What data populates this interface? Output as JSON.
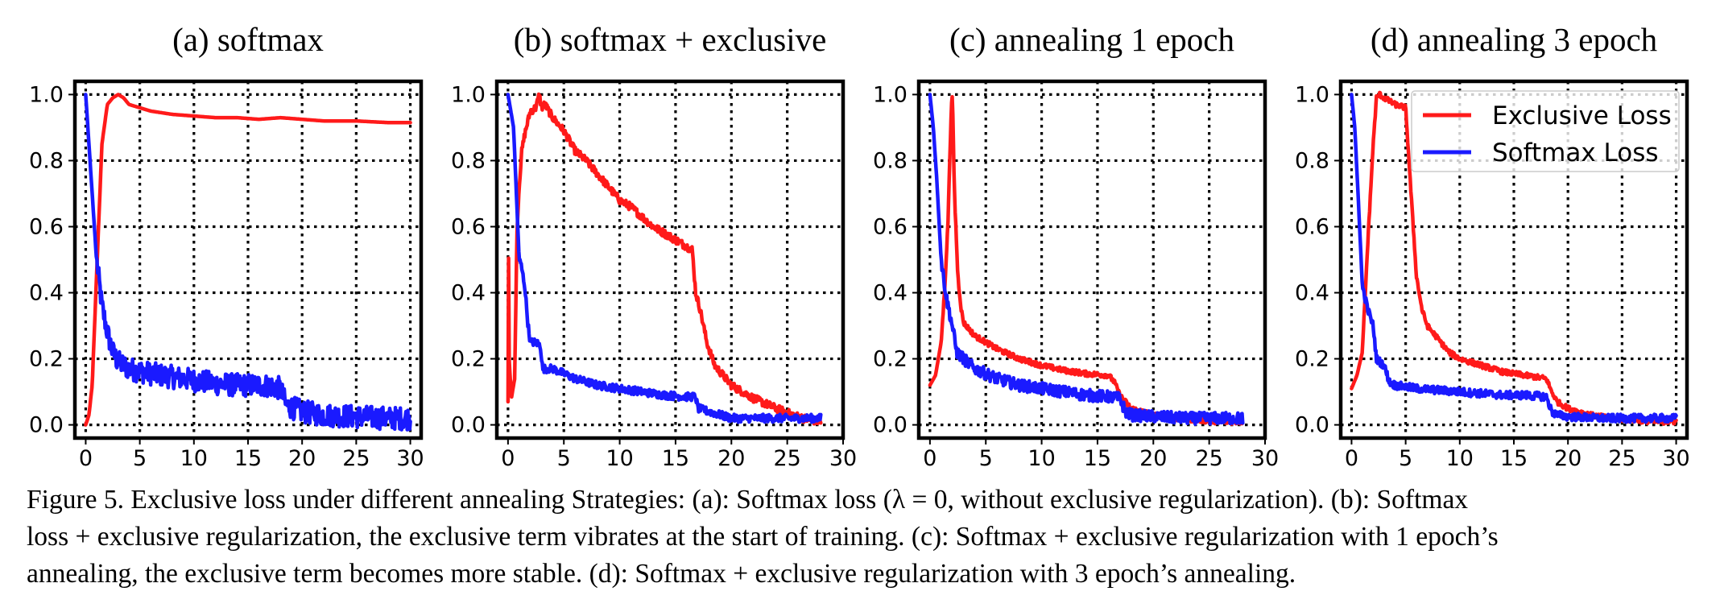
{
  "figure": {
    "caption_lines": [
      "Figure 5.   Exclusive loss under different annealing Strategies: (a): Softmax loss (λ = 0, without exclusive regularization). (b): Softmax",
      "loss + exclusive regularization, the exclusive term vibrates at the start of training. (c): Softmax + exclusive regularization with 1 epoch’s",
      "annealing, the exclusive term becomes more stable. (d): Softmax + exclusive regularization with 3 epoch’s annealing."
    ]
  },
  "colors": {
    "exclusive": "#ff1a1a",
    "softmax": "#1a1aff",
    "grid": "#000000",
    "background": "#ffffff"
  },
  "chart_data": [
    {
      "type": "line",
      "title": "(a) softmax",
      "xlim": [
        -1,
        31
      ],
      "ylim": [
        -0.04,
        1.04
      ],
      "xticks": [
        0,
        5,
        10,
        15,
        20,
        25,
        30
      ],
      "yticks": [
        0.0,
        0.2,
        0.4,
        0.6,
        0.8,
        1.0
      ],
      "grid": true,
      "series": [
        {
          "name": "Exclusive Loss",
          "color": "#ff1a1a",
          "x": [
            0,
            0.3,
            0.6,
            1.0,
            1.5,
            2.0,
            2.5,
            3.0,
            3.5,
            4.0,
            5.0,
            6.0,
            8.0,
            10.0,
            12.0,
            14.0,
            16.0,
            18.0,
            20.0,
            22.0,
            25.0,
            28.0,
            30.0
          ],
          "y": [
            0.0,
            0.03,
            0.12,
            0.45,
            0.85,
            0.97,
            0.99,
            1.0,
            0.99,
            0.97,
            0.96,
            0.95,
            0.94,
            0.935,
            0.93,
            0.93,
            0.925,
            0.93,
            0.925,
            0.92,
            0.92,
            0.915,
            0.915
          ]
        },
        {
          "name": "Softmax Loss",
          "color": "#1a1aff",
          "x": [
            0,
            0.5,
            1.0,
            1.5,
            2.0,
            2.5,
            3.0,
            4.0,
            6.0,
            8.0,
            10.0,
            12.0,
            14.0,
            16.0,
            17.0,
            18.0,
            18.5,
            20.0,
            22.0,
            25.0,
            28.0,
            30.0
          ],
          "y": [
            1.0,
            0.75,
            0.5,
            0.36,
            0.28,
            0.22,
            0.19,
            0.17,
            0.155,
            0.145,
            0.135,
            0.125,
            0.12,
            0.12,
            0.118,
            0.11,
            0.06,
            0.04,
            0.03,
            0.025,
            0.02,
            0.02
          ],
          "noise": 0.035
        }
      ]
    },
    {
      "type": "line",
      "title": "(b) softmax + exclusive",
      "xlim": [
        -1,
        30
      ],
      "ylim": [
        -0.04,
        1.04
      ],
      "xticks": [
        0,
        5,
        10,
        15,
        20,
        25,
        30
      ],
      "yticks": [
        0.0,
        0.2,
        0.4,
        0.6,
        0.8,
        1.0
      ],
      "grid": true,
      "series": [
        {
          "name": "Exclusive Loss",
          "color": "#ff1a1a",
          "x": [
            0,
            0.05,
            0.1,
            0.3,
            0.6,
            0.8,
            1.0,
            1.2,
            1.5,
            2.0,
            2.5,
            2.8,
            3.0,
            3.3,
            4.0,
            5.0,
            6.0,
            7.0,
            8.0,
            9.0,
            10.0,
            11.0,
            12.0,
            13.0,
            14.0,
            15.0,
            16.0,
            16.5,
            16.8,
            17.2,
            17.8,
            18.5,
            20.0,
            22.0,
            24.0,
            25.5,
            27.0,
            28.0
          ],
          "y": [
            0.07,
            0.53,
            0.2,
            0.08,
            0.14,
            0.58,
            0.72,
            0.82,
            0.88,
            0.95,
            0.96,
            1.0,
            0.96,
            0.97,
            0.93,
            0.89,
            0.83,
            0.8,
            0.76,
            0.72,
            0.68,
            0.66,
            0.63,
            0.6,
            0.58,
            0.56,
            0.54,
            0.53,
            0.4,
            0.35,
            0.25,
            0.18,
            0.12,
            0.08,
            0.05,
            0.03,
            0.015,
            0.01
          ],
          "noise": 0.012
        },
        {
          "name": "Softmax Loss",
          "color": "#1a1aff",
          "x": [
            0,
            0.5,
            1.0,
            1.2,
            1.5,
            1.8,
            2.0,
            2.5,
            2.9,
            3.1,
            4.0,
            6.0,
            8.0,
            10.0,
            12.0,
            14.0,
            16.0,
            16.8,
            17.0,
            18.0,
            19.0,
            20.0,
            22.0,
            25.0,
            28.0
          ],
          "y": [
            1.0,
            0.9,
            0.5,
            0.48,
            0.42,
            0.3,
            0.25,
            0.25,
            0.24,
            0.17,
            0.17,
            0.14,
            0.12,
            0.11,
            0.1,
            0.09,
            0.085,
            0.085,
            0.05,
            0.04,
            0.03,
            0.02,
            0.02,
            0.02,
            0.02
          ],
          "noise": 0.012
        }
      ]
    },
    {
      "type": "line",
      "title": "(c) annealing 1 epoch",
      "xlim": [
        -1,
        30
      ],
      "ylim": [
        -0.04,
        1.04
      ],
      "xticks": [
        0,
        5,
        10,
        15,
        20,
        25,
        30
      ],
      "yticks": [
        0.0,
        0.2,
        0.4,
        0.6,
        0.8,
        1.0
      ],
      "grid": true,
      "series": [
        {
          "name": "Exclusive Loss",
          "color": "#ff1a1a",
          "x": [
            0,
            0.5,
            1.0,
            1.3,
            1.6,
            1.9,
            2.0,
            2.2,
            2.5,
            2.8,
            3.0,
            4.0,
            6.0,
            8.0,
            10.0,
            12.0,
            14.0,
            16.0,
            16.5,
            17.0,
            18.0,
            20.0,
            22.0,
            24.0,
            26.0,
            28.0
          ],
          "y": [
            0.12,
            0.15,
            0.25,
            0.4,
            0.6,
            0.95,
            1.0,
            0.7,
            0.45,
            0.35,
            0.31,
            0.27,
            0.23,
            0.2,
            0.18,
            0.165,
            0.155,
            0.15,
            0.13,
            0.09,
            0.05,
            0.03,
            0.02,
            0.015,
            0.01,
            0.01
          ],
          "noise": 0.008
        },
        {
          "name": "Softmax Loss",
          "color": "#1a1aff",
          "x": [
            0,
            0.3,
            0.6,
            1.0,
            1.5,
            2.0,
            2.4,
            3.0,
            4.0,
            6.0,
            8.0,
            10.0,
            12.0,
            14.0,
            16.0,
            17.0,
            17.5,
            18.0,
            20.0,
            23.0,
            26.0,
            28.0
          ],
          "y": [
            1.0,
            0.9,
            0.75,
            0.5,
            0.38,
            0.3,
            0.22,
            0.2,
            0.17,
            0.14,
            0.12,
            0.11,
            0.1,
            0.09,
            0.085,
            0.08,
            0.04,
            0.03,
            0.025,
            0.02,
            0.02,
            0.02
          ],
          "noise": 0.018
        }
      ]
    },
    {
      "type": "line",
      "title": "(d) annealing 3 epoch",
      "xlim": [
        -1,
        31
      ],
      "ylim": [
        -0.04,
        1.04
      ],
      "xticks": [
        0,
        5,
        10,
        15,
        20,
        25,
        30
      ],
      "yticks": [
        0.0,
        0.2,
        0.4,
        0.6,
        0.8,
        1.0
      ],
      "grid": true,
      "legend": {
        "position": "upper right",
        "entries": [
          "Exclusive Loss",
          "Softmax Loss"
        ]
      },
      "series": [
        {
          "name": "Exclusive Loss",
          "color": "#ff1a1a",
          "x": [
            0,
            0.5,
            1.0,
            1.5,
            2.0,
            2.3,
            2.6,
            3.0,
            3.5,
            4.0,
            5.0,
            5.5,
            6.0,
            6.5,
            7.0,
            8.0,
            9.0,
            10.0,
            12.0,
            14.0,
            16.0,
            18.0,
            18.5,
            19.0,
            20.0,
            22.0,
            24.0,
            26.0,
            28.0,
            30.0
          ],
          "y": [
            0.11,
            0.15,
            0.22,
            0.55,
            0.85,
            0.99,
            1.0,
            0.99,
            0.98,
            0.97,
            0.96,
            0.7,
            0.45,
            0.35,
            0.3,
            0.26,
            0.22,
            0.2,
            0.18,
            0.16,
            0.15,
            0.14,
            0.1,
            0.07,
            0.05,
            0.03,
            0.02,
            0.015,
            0.01,
            0.01
          ],
          "noise": 0.008
        },
        {
          "name": "Softmax Loss",
          "color": "#1a1aff",
          "x": [
            0,
            0.3,
            0.6,
            1.0,
            1.5,
            2.0,
            2.3,
            3.0,
            3.5,
            4.0,
            6.0,
            8.0,
            10.0,
            12.0,
            14.0,
            16.0,
            18.0,
            18.5,
            19.0,
            20.0,
            23.0,
            26.0,
            28.0,
            30.0
          ],
          "y": [
            1.0,
            0.9,
            0.7,
            0.42,
            0.35,
            0.3,
            0.2,
            0.18,
            0.13,
            0.12,
            0.11,
            0.105,
            0.1,
            0.095,
            0.09,
            0.09,
            0.085,
            0.04,
            0.03,
            0.025,
            0.02,
            0.02,
            0.02,
            0.02
          ],
          "noise": 0.012
        }
      ]
    }
  ]
}
